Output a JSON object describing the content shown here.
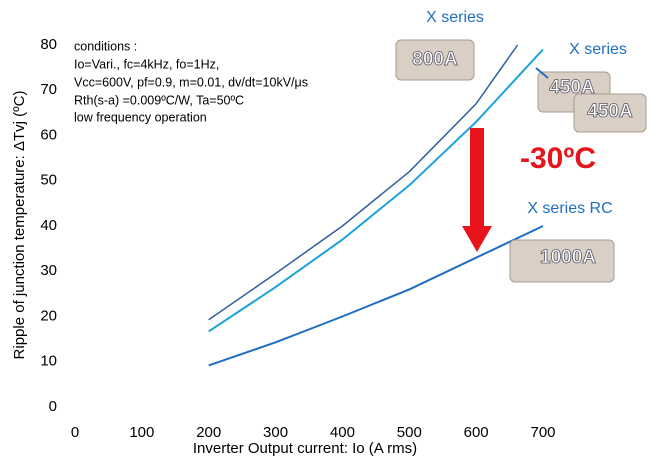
{
  "chart_data": {
    "type": "line",
    "x_label": "Inverter Output current: Io (A rms)",
    "y_label": "Ripple of junction temperature: ΔTvj (ºC)",
    "xlim": [
      0,
      700
    ],
    "xticks": [
      0,
      100,
      200,
      300,
      400,
      500,
      600,
      700
    ],
    "ylim": [
      0,
      80
    ],
    "yticks": [
      0,
      10,
      20,
      30,
      40,
      50,
      60,
      70,
      80
    ],
    "grid": false,
    "series": [
      {
        "name": "800A",
        "color": "#2f5f9f",
        "x": [
          200,
          300,
          400,
          500,
          600,
          662
        ],
        "values": [
          19.3,
          29.5,
          40,
          52,
          67,
          80
        ]
      },
      {
        "name": "450A",
        "color": "#1ba1dd",
        "x": [
          200,
          300,
          400,
          500,
          600,
          700
        ],
        "values": [
          16.7,
          26.5,
          37,
          49,
          63,
          79
        ]
      },
      {
        "name": "1000A",
        "color": "#1f6ec4",
        "x": [
          200,
          300,
          400,
          500,
          600,
          700
        ],
        "values": [
          9.2,
          14.3,
          20,
          26,
          33,
          40
        ]
      }
    ],
    "annotations": [
      "X series",
      "X series",
      "X series RC",
      "-30ºC"
    ],
    "conditions": [
      "conditions :",
      "Io=Vari., fc=4kHz, fo=1Hz,",
      "Vcc=600V, pf=0.9, m=0.01, dv/dt=10kV/μs",
      "Rth(s-a) =0.009ºC/W, Ta=50ºC",
      "low frequency operation"
    ]
  }
}
